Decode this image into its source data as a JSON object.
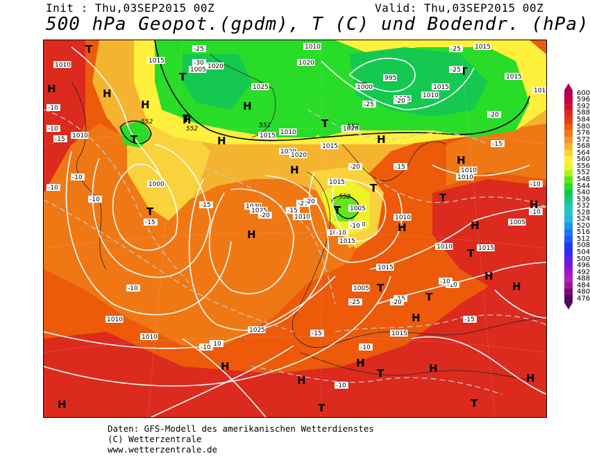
{
  "header": {
    "init": "Init : Thu,03SEP2015 00Z",
    "valid": "Valid: Thu,03SEP2015 00Z",
    "title": "500 hPa Geopot.(gpdm), T (C) und Bodendr. (hPa)"
  },
  "footer": {
    "line1": "Daten: GFS-Modell des amerikanischen Wetterdienstes",
    "line2": "(C) Wetterzentrale",
    "line3": "www.wetterzentrale.de"
  },
  "colorbar": {
    "labels": [
      "600",
      "596",
      "592",
      "588",
      "584",
      "580",
      "576",
      "572",
      "568",
      "564",
      "560",
      "556",
      "552",
      "548",
      "544",
      "540",
      "536",
      "532",
      "528",
      "524",
      "520",
      "516",
      "512",
      "508",
      "504",
      "500",
      "496",
      "492",
      "488",
      "484",
      "480",
      "476"
    ],
    "colors": [
      "#b4004e",
      "#c8003c",
      "#d2142a",
      "#dc2a1e",
      "#e23c14",
      "#ec5a0a",
      "#f07814",
      "#f59628",
      "#f5b430",
      "#fad23c",
      "#fff03c",
      "#ebf528",
      "#b4f01e",
      "#64e61e",
      "#28dc28",
      "#14c850",
      "#14c882",
      "#1ec8aa",
      "#28c8c8",
      "#28b4dc",
      "#1e96e6",
      "#1e78f0",
      "#1e5af5",
      "#1e3cf5",
      "#3228f0",
      "#5a1ee6",
      "#8214dc",
      "#a014c8",
      "#b41eb4",
      "#a01496",
      "#780a78",
      "#500a5a"
    ],
    "top_arrow_color": "#b4004e",
    "bottom_arrow_color": "#500a5a"
  },
  "map": {
    "high_label": "H",
    "low_label": "T",
    "pressure_labels": [
      "1010",
      "1015",
      "1020",
      "1005",
      "1025",
      "1010",
      "1000",
      "1030",
      "1025",
      "1020",
      "1015",
      "1010",
      "1005",
      "1000",
      "995",
      "1020",
      "1015",
      "1020",
      "1010",
      "1015",
      "1010",
      "1005",
      "1010",
      "1015",
      "1010",
      "1015",
      "1010",
      "1015",
      "1005",
      "1000",
      "1010",
      "1015",
      "1020",
      "1015",
      "1010",
      "1015",
      "1015",
      "1010",
      "1025",
      "1015",
      "1010",
      "1005",
      "1010"
    ],
    "temp_labels": [
      "-10",
      "-10",
      "-15",
      "-10",
      "-10",
      "-15",
      "-20",
      "-15",
      "-20",
      "-25",
      "-30",
      "-25",
      "-20",
      "-25",
      "-20",
      "-25",
      "-15",
      "-20",
      "-15",
      "-10",
      "-10",
      "-15",
      "-10",
      "-10",
      "-15",
      "-20",
      "-25",
      "-10",
      "-10",
      "-10",
      "-10",
      "-10",
      "-15",
      "-10",
      "-20",
      "-15",
      "-10",
      "-10",
      "-10"
    ],
    "geopot_labels": [
      "552",
      "552",
      "552",
      "552",
      "552"
    ]
  }
}
